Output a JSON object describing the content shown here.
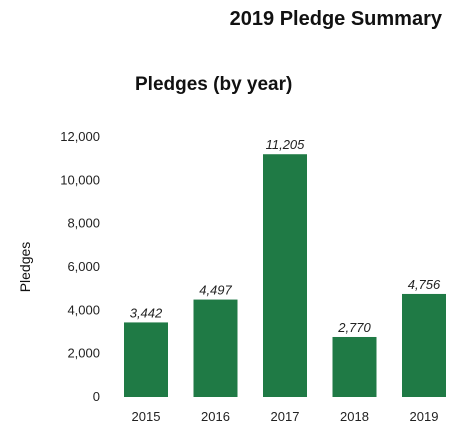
{
  "page_title": "2019 Pledge Summary",
  "chart_data": {
    "type": "bar",
    "title": "Pledges (by year)",
    "xlabel": "",
    "ylabel": "Pledges",
    "categories": [
      "2015",
      "2016",
      "2017",
      "2018",
      "2019"
    ],
    "values": [
      3442,
      4497,
      11205,
      2770,
      4756
    ],
    "data_labels": [
      "3,442",
      "4,497",
      "11,205",
      "2,770",
      "4,756"
    ],
    "ylim": [
      0,
      12000
    ],
    "yticks": [
      0,
      2000,
      4000,
      6000,
      8000,
      10000,
      12000
    ],
    "ytick_labels": [
      "0",
      "2,000",
      "4,000",
      "6,000",
      "8,000",
      "10,000",
      "12,000"
    ],
    "grid": false,
    "legend": "none",
    "bar_color": "#1f7a45"
  }
}
